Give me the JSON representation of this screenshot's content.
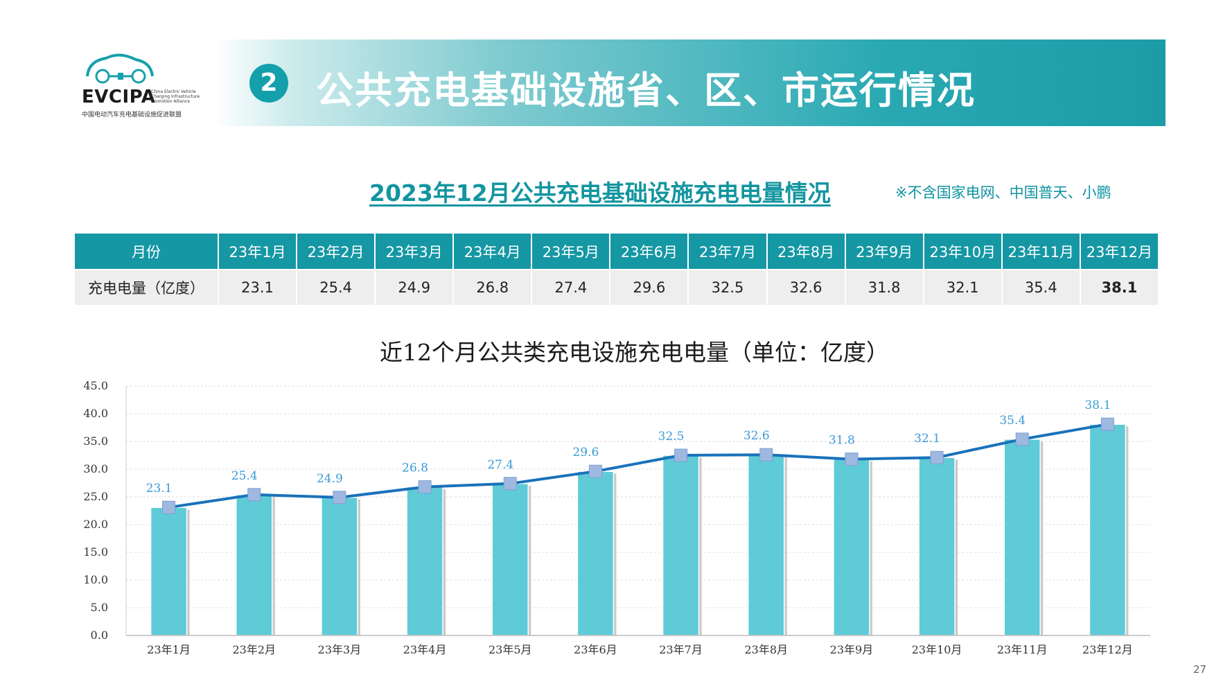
{
  "logo": {
    "name": "EVCIPA",
    "english_lines": [
      "China Electric Vehicle",
      "Charging Infrastructure",
      "Promotion Alliance"
    ],
    "chinese_name": "中国电动汽车充电基础设施促进联盟"
  },
  "banner": {
    "number": "2",
    "title": "公共充电基础设施省、区、市运行情况"
  },
  "subtitle": "2023年12月公共充电基础设施充电电量情况",
  "note": "※不含国家电网、中国普天、小鹏",
  "table": {
    "header_label": "月份",
    "row_label": "充电电量（亿度）",
    "months": [
      "23年1月",
      "23年2月",
      "23年3月",
      "23年4月",
      "23年5月",
      "23年6月",
      "23年7月",
      "23年8月",
      "23年9月",
      "23年10月",
      "23年11月",
      "23年12月"
    ],
    "values": [
      "23.1",
      "25.4",
      "24.9",
      "26.8",
      "27.4",
      "29.6",
      "32.5",
      "32.6",
      "31.8",
      "32.1",
      "35.4",
      "38.1"
    ]
  },
  "chart_data": {
    "type": "bar",
    "title": "近12个月公共类充电设施充电电量（单位：亿度）",
    "categories": [
      "23年1月",
      "23年2月",
      "23年3月",
      "23年4月",
      "23年5月",
      "23年6月",
      "23年7月",
      "23年8月",
      "23年9月",
      "23年10月",
      "23年11月",
      "23年12月"
    ],
    "values": [
      23.1,
      25.4,
      24.9,
      26.8,
      27.4,
      29.6,
      32.5,
      32.6,
      31.8,
      32.1,
      35.4,
      38.1
    ],
    "line_overlay": true,
    "ylim": [
      0,
      45
    ],
    "yticks": [
      "0.0",
      "5.0",
      "10.0",
      "15.0",
      "20.0",
      "25.0",
      "30.0",
      "35.0",
      "40.0",
      "45.0"
    ],
    "ytick_values": [
      0,
      5,
      10,
      15,
      20,
      25,
      30,
      35,
      40,
      45
    ],
    "data_labels": [
      "23.1",
      "25.4",
      "24.9",
      "26.8",
      "27.4",
      "29.6",
      "32.5",
      "32.6",
      "31.8",
      "32.1",
      "35.4",
      "38.1"
    ],
    "grid": true,
    "colors": {
      "bar": "#5ecbd7",
      "line": "#1a72bb",
      "marker": "#9fb8e0",
      "label": "#3a9bd6"
    }
  },
  "page_number": "27"
}
